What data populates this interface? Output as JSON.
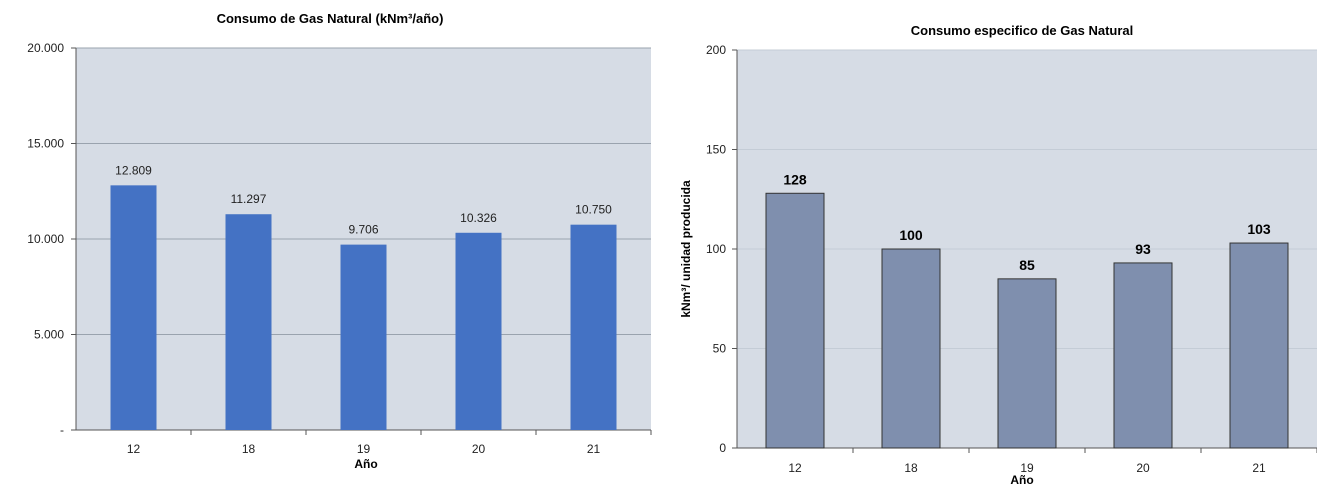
{
  "chart_data": [
    {
      "type": "bar",
      "title": "Consumo de Gas Natural  (kNm³/año)",
      "xlabel": "Año",
      "ylabel": "",
      "categories": [
        "12",
        "18",
        "19",
        "20",
        "21"
      ],
      "values": [
        12809,
        11297,
        9706,
        10326,
        10750
      ],
      "data_labels": [
        "12.809",
        "11.297",
        "9.706",
        "10.326",
        "10.750"
      ],
      "ylim": [
        0,
        20000
      ],
      "yticks": [
        0,
        5000,
        10000,
        15000,
        20000
      ],
      "ytick_labels": [
        "-",
        "5.000",
        "10.000",
        "15.000",
        "20.000"
      ],
      "grid": true,
      "legend": "none",
      "colors": {
        "bar": "#4472c4",
        "plot_bg": "#d6dce5",
        "grid": "#9aa3ae"
      }
    },
    {
      "type": "bar",
      "title": "Consumo especifico de Gas Natural",
      "xlabel": "Año",
      "ylabel": "kNm³/ unidad producida",
      "categories": [
        "12",
        "18",
        "19",
        "20",
        "21"
      ],
      "values": [
        128,
        100,
        85,
        93,
        103
      ],
      "data_labels": [
        "128",
        "100",
        "85",
        "93",
        "103"
      ],
      "ylim": [
        0,
        200
      ],
      "yticks": [
        0,
        50,
        100,
        150,
        200
      ],
      "ytick_labels": [
        "0",
        "50",
        "100",
        "150",
        "200"
      ],
      "grid": true,
      "legend": "none",
      "colors": {
        "bar": "#7f8fae",
        "plot_bg": "#d6dce5",
        "grid": "#c4ccd6"
      }
    }
  ]
}
